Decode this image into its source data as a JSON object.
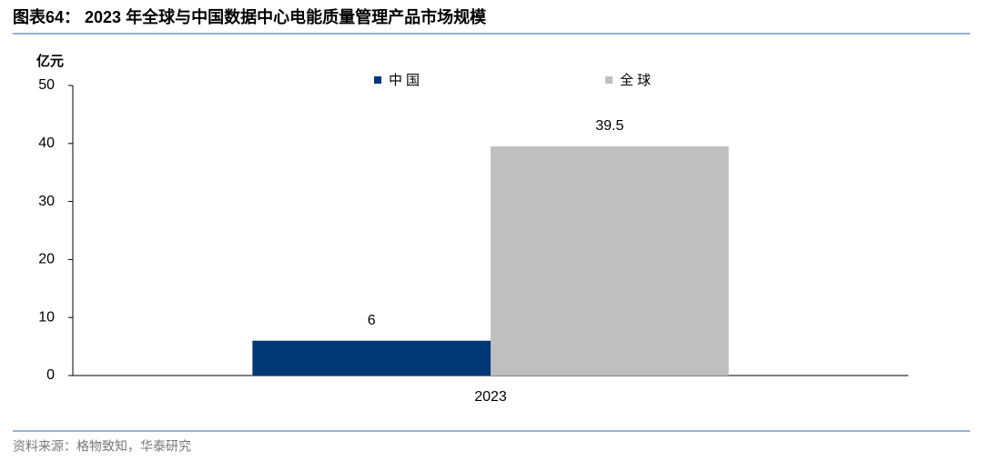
{
  "chart_data": {
    "type": "bar",
    "title": "图表64： 2023 年全球与中国数据中心电能质量管理产品市场规模",
    "y_label": "亿元",
    "categories": [
      "2023"
    ],
    "series": [
      {
        "name": "中国",
        "color": "#003776",
        "values": [
          6
        ]
      },
      {
        "name": "全球",
        "color": "#bfbfbf",
        "values": [
          39.5
        ]
      }
    ],
    "ylim": [
      0,
      50
    ],
    "yticks": [
      0,
      10,
      20,
      30,
      40,
      50
    ],
    "grid": false,
    "source": "资料来源：格物致知，华泰研究"
  }
}
